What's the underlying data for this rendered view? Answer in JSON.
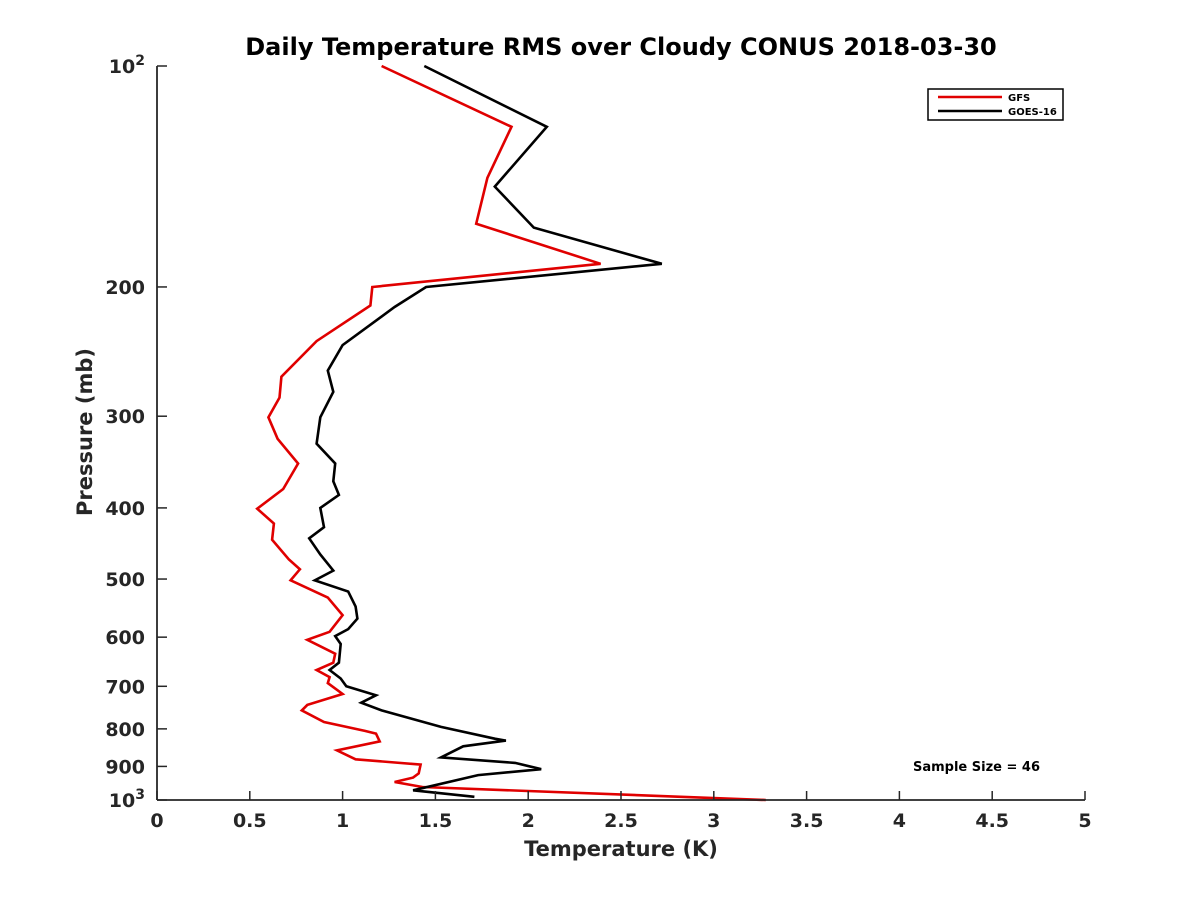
{
  "chart_data": {
    "type": "line",
    "title": "Daily Temperature RMS over Cloudy CONUS 2018-03-30",
    "xlabel": "Temperature (K)",
    "ylabel": "Pressure (mb)",
    "xlim": [
      0,
      5
    ],
    "ylim": [
      100,
      1000
    ],
    "y_scale": "log",
    "y_reversed": true,
    "grid": false,
    "legend_position": "top-right",
    "x_ticks": [
      {
        "value": 0,
        "label": "0"
      },
      {
        "value": 0.5,
        "label": "0.5"
      },
      {
        "value": 1,
        "label": "1"
      },
      {
        "value": 1.5,
        "label": "1.5"
      },
      {
        "value": 2,
        "label": "2"
      },
      {
        "value": 2.5,
        "label": "2.5"
      },
      {
        "value": 3,
        "label": "3"
      },
      {
        "value": 3.5,
        "label": "3.5"
      },
      {
        "value": 4,
        "label": "4"
      },
      {
        "value": 4.5,
        "label": "4.5"
      },
      {
        "value": 5,
        "label": "5"
      }
    ],
    "y_ticks": [
      {
        "value": 100,
        "base": "10",
        "exp": "2"
      },
      {
        "value": 200,
        "base": "200",
        "exp": ""
      },
      {
        "value": 300,
        "base": "300",
        "exp": ""
      },
      {
        "value": 400,
        "base": "400",
        "exp": ""
      },
      {
        "value": 500,
        "base": "500",
        "exp": ""
      },
      {
        "value": 600,
        "base": "600",
        "exp": ""
      },
      {
        "value": 700,
        "base": "700",
        "exp": ""
      },
      {
        "value": 800,
        "base": "800",
        "exp": ""
      },
      {
        "value": 900,
        "base": "900",
        "exp": ""
      },
      {
        "value": 1000,
        "base": "10",
        "exp": "3"
      }
    ],
    "annotation": "Sample Size = 46",
    "series": [
      {
        "name": "GFS",
        "color": "#e00000",
        "points": [
          [
            1.21,
            100
          ],
          [
            1.91,
            121
          ],
          [
            1.78,
            142
          ],
          [
            1.72,
            164
          ],
          [
            2.39,
            186
          ],
          [
            1.16,
            200
          ],
          [
            1.15,
            212
          ],
          [
            0.86,
            237
          ],
          [
            0.67,
            265
          ],
          [
            0.66,
            283
          ],
          [
            0.6,
            301
          ],
          [
            0.65,
            322
          ],
          [
            0.76,
            348
          ],
          [
            0.68,
            377
          ],
          [
            0.54,
            401
          ],
          [
            0.63,
            420
          ],
          [
            0.62,
            442
          ],
          [
            0.71,
            470
          ],
          [
            0.77,
            485
          ],
          [
            0.72,
            502
          ],
          [
            0.92,
            530
          ],
          [
            1.0,
            560
          ],
          [
            0.93,
            590
          ],
          [
            0.81,
            605
          ],
          [
            0.96,
            632
          ],
          [
            0.95,
            650
          ],
          [
            0.86,
            665
          ],
          [
            0.93,
            680
          ],
          [
            0.92,
            693
          ],
          [
            1.0,
            717
          ],
          [
            0.81,
            742
          ],
          [
            0.78,
            755
          ],
          [
            0.9,
            783
          ],
          [
            1.12,
            805
          ],
          [
            1.18,
            812
          ],
          [
            1.2,
            832
          ],
          [
            0.97,
            856
          ],
          [
            1.07,
            880
          ],
          [
            1.42,
            895
          ],
          [
            1.41,
            920
          ],
          [
            1.38,
            932
          ],
          [
            1.28,
            945
          ],
          [
            1.43,
            960
          ],
          [
            3.28,
            1000
          ]
        ]
      },
      {
        "name": "GOES-16",
        "color": "#000000",
        "points": [
          [
            1.44,
            100
          ],
          [
            2.1,
            121
          ],
          [
            1.82,
            146
          ],
          [
            2.03,
            166
          ],
          [
            2.72,
            186
          ],
          [
            1.45,
            200
          ],
          [
            1.28,
            213
          ],
          [
            1.0,
            240
          ],
          [
            0.92,
            260
          ],
          [
            0.95,
            278
          ],
          [
            0.88,
            301
          ],
          [
            0.86,
            327
          ],
          [
            0.96,
            348
          ],
          [
            0.95,
            368
          ],
          [
            0.98,
            384
          ],
          [
            0.88,
            400
          ],
          [
            0.9,
            425
          ],
          [
            0.82,
            440
          ],
          [
            0.88,
            463
          ],
          [
            0.95,
            487
          ],
          [
            0.85,
            502
          ],
          [
            1.03,
            520
          ],
          [
            1.07,
            545
          ],
          [
            1.08,
            566
          ],
          [
            1.03,
            585
          ],
          [
            0.96,
            598
          ],
          [
            0.99,
            613
          ],
          [
            0.98,
            650
          ],
          [
            0.93,
            665
          ],
          [
            0.99,
            683
          ],
          [
            1.02,
            700
          ],
          [
            1.18,
            720
          ],
          [
            1.1,
            737
          ],
          [
            1.21,
            755
          ],
          [
            1.53,
            795
          ],
          [
            1.82,
            825
          ],
          [
            1.88,
            830
          ],
          [
            1.65,
            845
          ],
          [
            1.53,
            875
          ],
          [
            1.93,
            890
          ],
          [
            2.07,
            908
          ],
          [
            1.73,
            925
          ],
          [
            1.38,
            970
          ],
          [
            1.71,
            990
          ]
        ]
      }
    ]
  }
}
